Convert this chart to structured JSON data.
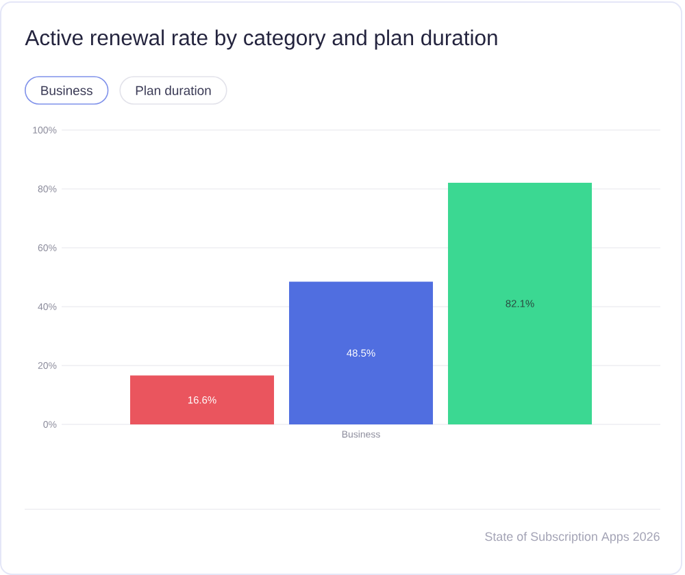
{
  "chart_data": {
    "type": "bar",
    "title": "Active renewal rate by category and plan duration",
    "annotations": [
      "Business",
      "Plan duration",
      "State of Subscription Apps 2026"
    ],
    "categories": [
      null,
      "Business",
      null
    ],
    "values": [
      16.6,
      48.5,
      82.1
    ],
    "colors": [
      "#ea555e",
      "#506ee0",
      "#3bd892"
    ],
    "value_labels": [
      "16.6%",
      "48.5%",
      "82.1%"
    ],
    "ylim": [
      0,
      100
    ],
    "yticks": [
      {
        "value": 0,
        "label": "0%"
      },
      {
        "value": 20,
        "label": "20%"
      },
      {
        "value": 40,
        "label": "40%"
      },
      {
        "value": 60,
        "label": "60%"
      },
      {
        "value": 80,
        "label": "80%"
      },
      {
        "value": 100,
        "label": "100%"
      }
    ],
    "grid": "y"
  }
}
